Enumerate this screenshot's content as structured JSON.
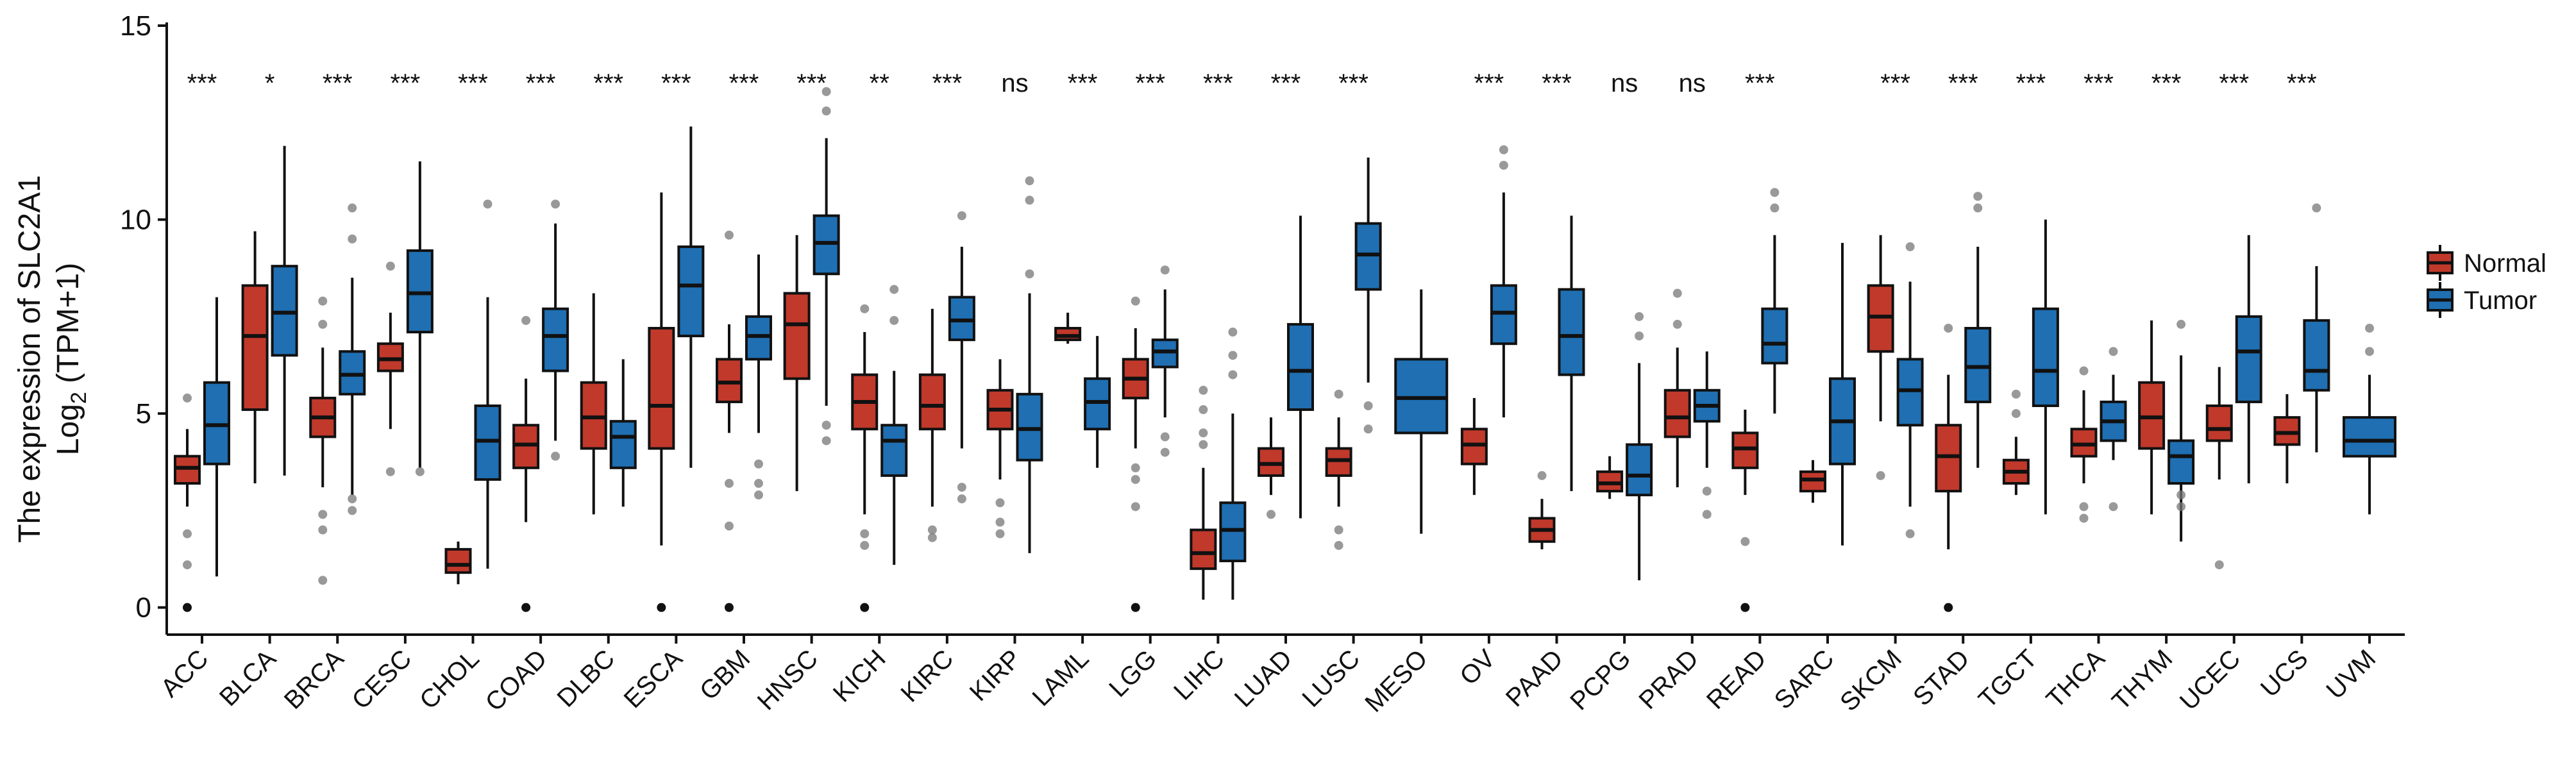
{
  "chart_data": {
    "type": "boxplot",
    "title": "",
    "ylabel_line1": "The expression of SLC2A1",
    "ylabel_line2": "Log",
    "ylabel_sub": "2",
    "ylabel_line2_rest": " (TPM+1)",
    "xlabel": "",
    "ylim": [
      -0.7,
      15
    ],
    "yticks": [
      "0",
      "5",
      "10",
      "15"
    ],
    "ytick_values": [
      0,
      5,
      10,
      15
    ],
    "legend": {
      "placement": "right",
      "entries": [
        {
          "name": "Normal",
          "color": "#c0392b"
        },
        {
          "name": "Tumor",
          "color": "#1f6fb2"
        }
      ]
    },
    "categories": [
      "ACC",
      "BLCA",
      "BRCA",
      "CESC",
      "CHOL",
      "COAD",
      "DLBC",
      "ESCA",
      "GBM",
      "HNSC",
      "KICH",
      "KIRC",
      "KIRP",
      "LAML",
      "LGG",
      "LIHC",
      "LUAD",
      "LUSC",
      "MESO",
      "OV",
      "PAAD",
      "PCPG",
      "PRAD",
      "READ",
      "SARC",
      "SKCM",
      "STAD",
      "TGCT",
      "THCA",
      "THYM",
      "UCEC",
      "UCS",
      "UVM"
    ],
    "significance": [
      "***",
      "*",
      "***",
      "***",
      "***",
      "***",
      "***",
      "***",
      "***",
      "***",
      "**",
      "***",
      "ns",
      "***",
      "***",
      "***",
      "***",
      "***",
      "",
      "***",
      "***",
      "ns",
      "ns",
      "***",
      "",
      "***",
      "***",
      "***",
      "***",
      "***",
      "***",
      "***",
      ""
    ],
    "normal": [
      {
        "min": 2.6,
        "q1": 3.2,
        "median": 3.6,
        "q3": 3.9,
        "max": 4.6,
        "outliers": [
          1.9,
          1.1,
          0.0,
          5.4
        ]
      },
      {
        "min": 3.2,
        "q1": 5.1,
        "median": 7.0,
        "q3": 8.3,
        "max": 9.7,
        "outliers": []
      },
      {
        "min": 3.1,
        "q1": 4.4,
        "median": 4.9,
        "q3": 5.4,
        "max": 6.7,
        "outliers": [
          2.4,
          2.0,
          0.7,
          7.3,
          7.9
        ]
      },
      {
        "min": 4.6,
        "q1": 6.1,
        "median": 6.4,
        "q3": 6.8,
        "max": 7.6,
        "outliers": [
          3.5,
          8.8
        ]
      },
      {
        "min": 0.6,
        "q1": 0.9,
        "median": 1.1,
        "q3": 1.5,
        "max": 1.7,
        "outliers": []
      },
      {
        "min": 2.2,
        "q1": 3.6,
        "median": 4.2,
        "q3": 4.7,
        "max": 5.9,
        "outliers": [
          0.0,
          7.4
        ]
      },
      {
        "min": 2.4,
        "q1": 4.1,
        "median": 4.9,
        "q3": 5.8,
        "max": 8.1,
        "outliers": []
      },
      {
        "min": 1.6,
        "q1": 4.1,
        "median": 5.2,
        "q3": 7.2,
        "max": 10.7,
        "outliers": [
          0.0
        ]
      },
      {
        "min": 4.5,
        "q1": 5.3,
        "median": 5.8,
        "q3": 6.4,
        "max": 7.3,
        "outliers": [
          3.2,
          2.1,
          0.0,
          9.6
        ]
      },
      {
        "min": 3.0,
        "q1": 5.9,
        "median": 7.3,
        "q3": 8.1,
        "max": 9.6,
        "outliers": []
      },
      {
        "min": 2.4,
        "q1": 4.6,
        "median": 5.3,
        "q3": 6.0,
        "max": 7.1,
        "outliers": [
          1.9,
          1.6,
          0.0,
          7.7
        ]
      },
      {
        "min": 2.6,
        "q1": 4.6,
        "median": 5.2,
        "q3": 6.0,
        "max": 7.7,
        "outliers": [
          2.0,
          1.8
        ]
      },
      {
        "min": 3.3,
        "q1": 4.6,
        "median": 5.1,
        "q3": 5.6,
        "max": 6.4,
        "outliers": [
          2.7,
          2.2,
          1.9
        ]
      },
      {
        "min": 6.8,
        "q1": 6.9,
        "median": 7.0,
        "q3": 7.2,
        "max": 7.6,
        "outliers": []
      },
      {
        "min": 4.1,
        "q1": 5.4,
        "median": 5.9,
        "q3": 6.4,
        "max": 7.2,
        "outliers": [
          3.6,
          3.3,
          2.6,
          0.0,
          7.9
        ]
      },
      {
        "min": 0.2,
        "q1": 1.0,
        "median": 1.4,
        "q3": 2.0,
        "max": 3.6,
        "outliers": [
          4.2,
          4.5,
          5.1,
          5.6
        ]
      },
      {
        "min": 2.9,
        "q1": 3.4,
        "median": 3.7,
        "q3": 4.1,
        "max": 4.9,
        "outliers": [
          2.4
        ]
      },
      {
        "min": 2.6,
        "q1": 3.4,
        "median": 3.8,
        "q3": 4.1,
        "max": 4.9,
        "outliers": [
          2.0,
          1.6,
          5.5
        ]
      },
      null,
      {
        "min": 2.9,
        "q1": 3.7,
        "median": 4.2,
        "q3": 4.6,
        "max": 5.4,
        "outliers": []
      },
      {
        "min": 1.5,
        "q1": 1.7,
        "median": 2.0,
        "q3": 2.3,
        "max": 2.8,
        "outliers": [
          3.4
        ]
      },
      {
        "min": 2.8,
        "q1": 3.0,
        "median": 3.2,
        "q3": 3.5,
        "max": 3.9,
        "outliers": []
      },
      {
        "min": 3.1,
        "q1": 4.4,
        "median": 4.9,
        "q3": 5.6,
        "max": 6.7,
        "outliers": [
          8.1,
          7.3
        ]
      },
      {
        "min": 2.9,
        "q1": 3.6,
        "median": 4.1,
        "q3": 4.5,
        "max": 5.1,
        "outliers": [
          1.7,
          0.0
        ]
      },
      {
        "min": 2.7,
        "q1": 3.0,
        "median": 3.3,
        "q3": 3.5,
        "max": 3.8,
        "outliers": []
      },
      {
        "min": 4.8,
        "q1": 6.6,
        "median": 7.5,
        "q3": 8.3,
        "max": 9.6,
        "outliers": [
          3.4
        ]
      },
      {
        "min": 1.5,
        "q1": 3.0,
        "median": 3.9,
        "q3": 4.7,
        "max": 6.0,
        "outliers": [
          7.2,
          0.0
        ]
      },
      {
        "min": 2.9,
        "q1": 3.2,
        "median": 3.5,
        "q3": 3.8,
        "max": 4.4,
        "outliers": [
          5.0,
          5.5
        ]
      },
      {
        "min": 3.2,
        "q1": 3.9,
        "median": 4.2,
        "q3": 4.6,
        "max": 5.6,
        "outliers": [
          2.6,
          2.3,
          6.1
        ]
      },
      {
        "min": 2.4,
        "q1": 4.1,
        "median": 4.9,
        "q3": 5.8,
        "max": 7.4,
        "outliers": []
      },
      {
        "min": 3.3,
        "q1": 4.3,
        "median": 4.6,
        "q3": 5.2,
        "max": 6.2,
        "outliers": [
          1.1
        ]
      },
      {
        "min": 3.2,
        "q1": 4.2,
        "median": 4.5,
        "q3": 4.9,
        "max": 5.5,
        "outliers": []
      },
      null
    ],
    "tumor": [
      {
        "min": 0.8,
        "q1": 3.7,
        "median": 4.7,
        "q3": 5.8,
        "max": 8.0,
        "outliers": []
      },
      {
        "min": 3.4,
        "q1": 6.5,
        "median": 7.6,
        "q3": 8.8,
        "max": 11.9,
        "outliers": []
      },
      {
        "min": 2.9,
        "q1": 5.5,
        "median": 6.0,
        "q3": 6.6,
        "max": 8.5,
        "outliers": [
          2.5,
          2.8,
          9.5,
          10.3
        ]
      },
      {
        "min": 3.6,
        "q1": 7.1,
        "median": 8.1,
        "q3": 9.2,
        "max": 11.5,
        "outliers": [
          3.5
        ]
      },
      {
        "min": 1.0,
        "q1": 3.3,
        "median": 4.3,
        "q3": 5.2,
        "max": 8.0,
        "outliers": [
          10.4
        ]
      },
      {
        "min": 4.3,
        "q1": 6.1,
        "median": 7.0,
        "q3": 7.7,
        "max": 9.9,
        "outliers": [
          10.4,
          3.9
        ]
      },
      {
        "min": 2.6,
        "q1": 3.6,
        "median": 4.4,
        "q3": 4.8,
        "max": 6.4,
        "outliers": []
      },
      {
        "min": 3.6,
        "q1": 7.0,
        "median": 8.3,
        "q3": 9.3,
        "max": 12.4,
        "outliers": []
      },
      {
        "min": 4.5,
        "q1": 6.4,
        "median": 7.0,
        "q3": 7.5,
        "max": 9.1,
        "outliers": [
          3.2,
          2.9,
          3.7
        ]
      },
      {
        "min": 5.2,
        "q1": 8.6,
        "median": 9.4,
        "q3": 10.1,
        "max": 12.1,
        "outliers": [
          13.3,
          12.8,
          4.7,
          4.3
        ]
      },
      {
        "min": 1.1,
        "q1": 3.4,
        "median": 4.3,
        "q3": 4.7,
        "max": 6.1,
        "outliers": [
          7.4,
          8.2
        ]
      },
      {
        "min": 4.1,
        "q1": 6.9,
        "median": 7.4,
        "q3": 8.0,
        "max": 9.3,
        "outliers": [
          3.1,
          2.8,
          10.1
        ]
      },
      {
        "min": 1.4,
        "q1": 3.8,
        "median": 4.6,
        "q3": 5.5,
        "max": 8.1,
        "outliers": [
          8.6,
          10.5,
          11.0
        ]
      },
      {
        "min": 3.6,
        "q1": 4.6,
        "median": 5.3,
        "q3": 5.9,
        "max": 7.0,
        "outliers": []
      },
      {
        "min": 4.9,
        "q1": 6.2,
        "median": 6.6,
        "q3": 6.9,
        "max": 8.2,
        "outliers": [
          4.4,
          4.0,
          8.7
        ]
      },
      {
        "min": 0.2,
        "q1": 1.2,
        "median": 2.0,
        "q3": 2.7,
        "max": 5.0,
        "outliers": [
          6.0,
          6.5,
          7.1
        ]
      },
      {
        "min": 2.3,
        "q1": 5.1,
        "median": 6.1,
        "q3": 7.3,
        "max": 10.1,
        "outliers": []
      },
      {
        "min": 5.8,
        "q1": 8.2,
        "median": 9.1,
        "q3": 9.9,
        "max": 11.6,
        "outliers": [
          5.2,
          4.6
        ]
      },
      {
        "min": 1.9,
        "q1": 4.5,
        "median": 5.4,
        "q3": 6.4,
        "max": 8.2,
        "outliers": []
      },
      {
        "min": 4.9,
        "q1": 6.8,
        "median": 7.6,
        "q3": 8.3,
        "max": 10.7,
        "outliers": [
          11.8,
          11.4
        ]
      },
      {
        "min": 3.0,
        "q1": 6.0,
        "median": 7.0,
        "q3": 8.2,
        "max": 10.1,
        "outliers": []
      },
      {
        "min": 0.7,
        "q1": 2.9,
        "median": 3.4,
        "q3": 4.2,
        "max": 6.3,
        "outliers": [
          7.0,
          7.5
        ]
      },
      {
        "min": 3.6,
        "q1": 4.8,
        "median": 5.2,
        "q3": 5.6,
        "max": 6.6,
        "outliers": [
          3.0,
          2.4
        ]
      },
      {
        "min": 5.0,
        "q1": 6.3,
        "median": 6.8,
        "q3": 7.7,
        "max": 9.6,
        "outliers": [
          10.3,
          10.7
        ]
      },
      {
        "min": 1.6,
        "q1": 3.7,
        "median": 4.8,
        "q3": 5.9,
        "max": 9.4,
        "outliers": []
      },
      {
        "min": 2.6,
        "q1": 4.7,
        "median": 5.6,
        "q3": 6.4,
        "max": 8.4,
        "outliers": [
          9.3,
          1.9
        ]
      },
      {
        "min": 3.6,
        "q1": 5.3,
        "median": 6.2,
        "q3": 7.2,
        "max": 9.3,
        "outliers": [
          10.3,
          10.6
        ]
      },
      {
        "min": 2.4,
        "q1": 5.2,
        "median": 6.1,
        "q3": 7.7,
        "max": 10.0,
        "outliers": []
      },
      {
        "min": 3.8,
        "q1": 4.3,
        "median": 4.8,
        "q3": 5.3,
        "max": 6.0,
        "outliers": [
          6.6,
          2.6
        ]
      },
      {
        "min": 1.7,
        "q1": 3.2,
        "median": 3.9,
        "q3": 4.3,
        "max": 6.5,
        "outliers": [
          2.9,
          2.6,
          7.3
        ]
      },
      {
        "min": 3.2,
        "q1": 5.3,
        "median": 6.6,
        "q3": 7.5,
        "max": 9.6,
        "outliers": []
      },
      {
        "min": 4.0,
        "q1": 5.6,
        "median": 6.1,
        "q3": 7.4,
        "max": 8.8,
        "outliers": [
          10.3
        ]
      },
      {
        "min": 2.4,
        "q1": 3.9,
        "median": 4.3,
        "q3": 4.9,
        "max": 6.0,
        "outliers": [
          7.2,
          6.6
        ]
      }
    ]
  }
}
